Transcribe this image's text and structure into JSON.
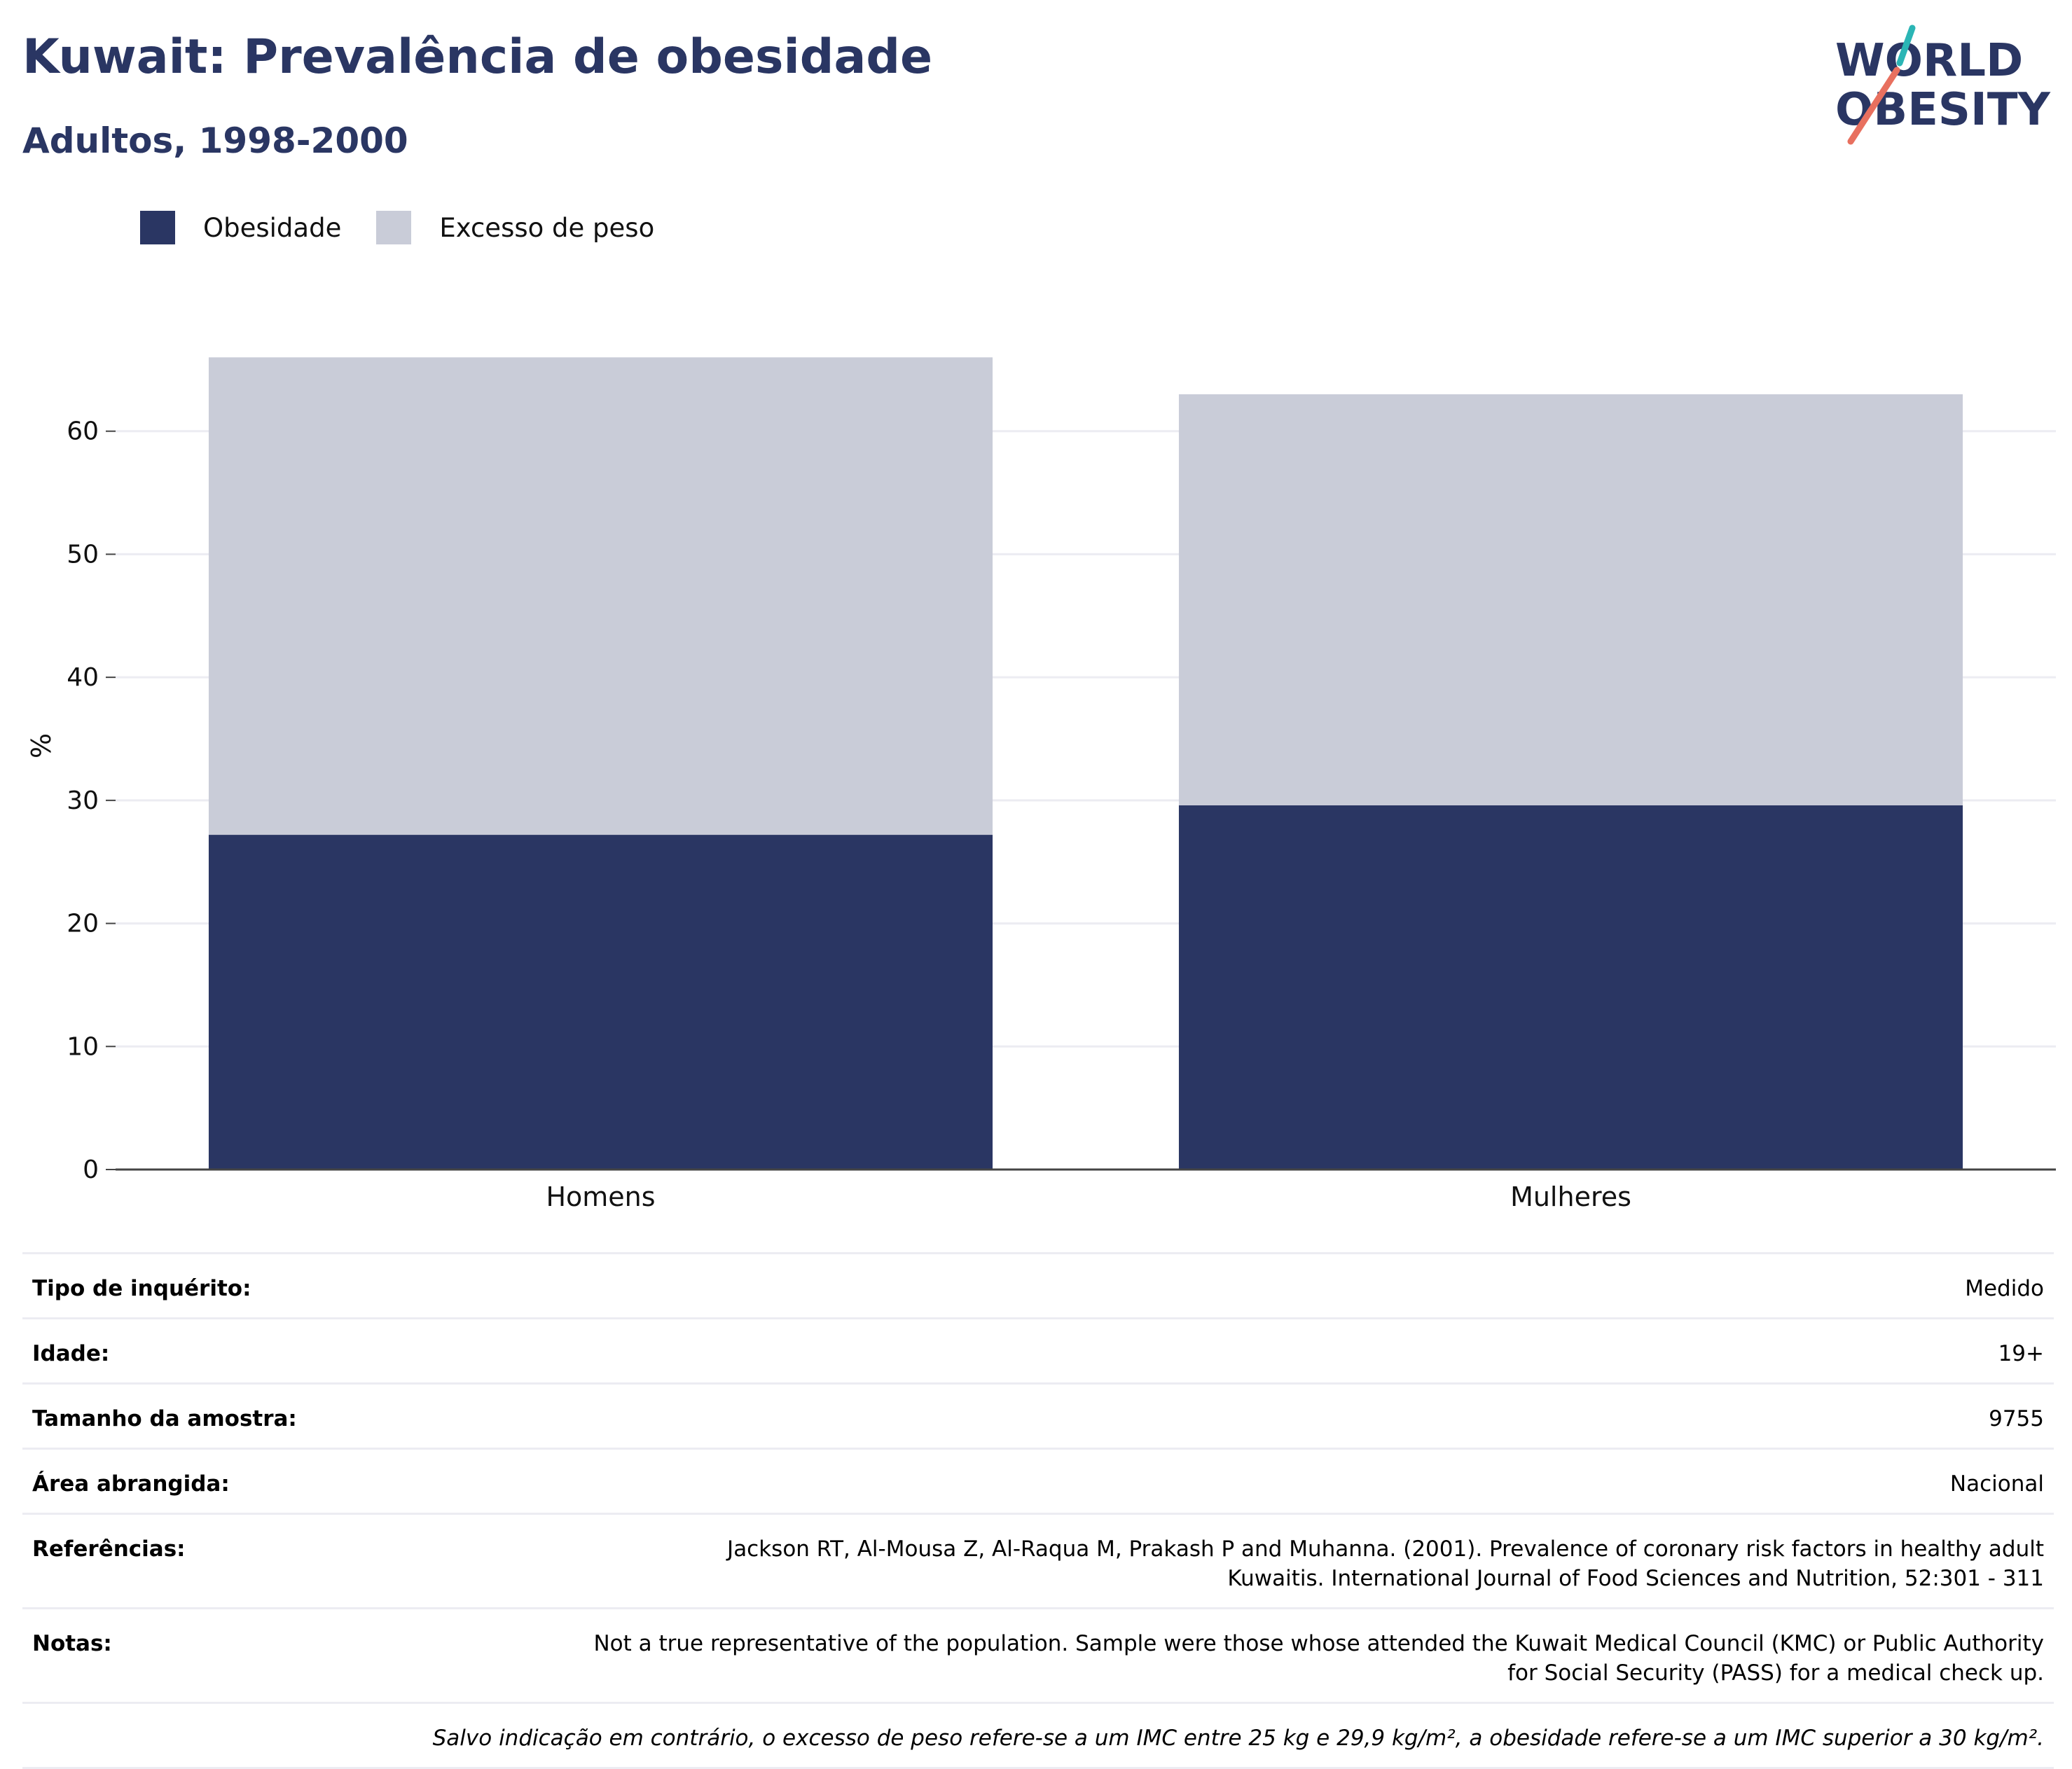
{
  "header": {
    "title": "Kuwait: Prevalência de obesidade",
    "subtitle": "Adultos, 1998-2000",
    "logo_line1": "WORLD",
    "logo_line2": "OBESITY"
  },
  "colors": {
    "brand_navy": "#2a3663",
    "overweight_grey": "#c9ccd8",
    "logo_teal": "#2bb5b5",
    "logo_coral": "#e8705f"
  },
  "legend": [
    {
      "label": "Obesidade",
      "color": "#2a3663"
    },
    {
      "label": "Excesso de peso",
      "color": "#c9ccd8"
    }
  ],
  "chart_data": {
    "type": "bar",
    "stacked": true,
    "categories": [
      "Homens",
      "Mulheres"
    ],
    "series": [
      {
        "name": "Obesidade",
        "values": [
          27.2,
          29.6
        ],
        "color": "#2a3663"
      },
      {
        "name": "Excesso de peso",
        "values": [
          38.8,
          33.4
        ],
        "color": "#c9ccd8"
      }
    ],
    "ylabel": "%",
    "ylim": [
      0,
      70
    ],
    "yticks": [
      0,
      10,
      20,
      30,
      40,
      50,
      60
    ],
    "grid": true,
    "legend_position": "top-left"
  },
  "info_table": [
    {
      "label": "Tipo de inquérito:",
      "value": "Medido"
    },
    {
      "label": "Idade:",
      "value": "19+"
    },
    {
      "label": "Tamanho da amostra:",
      "value": "9755"
    },
    {
      "label": "Área abrangida:",
      "value": "Nacional"
    },
    {
      "label": "Referências:",
      "value": "Jackson RT, Al-Mousa Z, Al-Raqua M, Prakash P and Muhanna. (2001). Prevalence of coronary risk factors in healthy adult Kuwaitis. International Journal of Food Sciences and Nutrition, 52:301 - 311"
    },
    {
      "label": "Notas:",
      "value": "Not a true representative of the population. Sample were those whose attended the Kuwait Medical Council (KMC) or Public Authority for Social Security (PASS) for a medical check up."
    }
  ],
  "footnote": "Salvo indicação em contrário, o excesso de peso refere-se a um IMC entre 25 kg e 29,9 kg/m², a obesidade refere-se a um IMC superior a 30 kg/m²."
}
